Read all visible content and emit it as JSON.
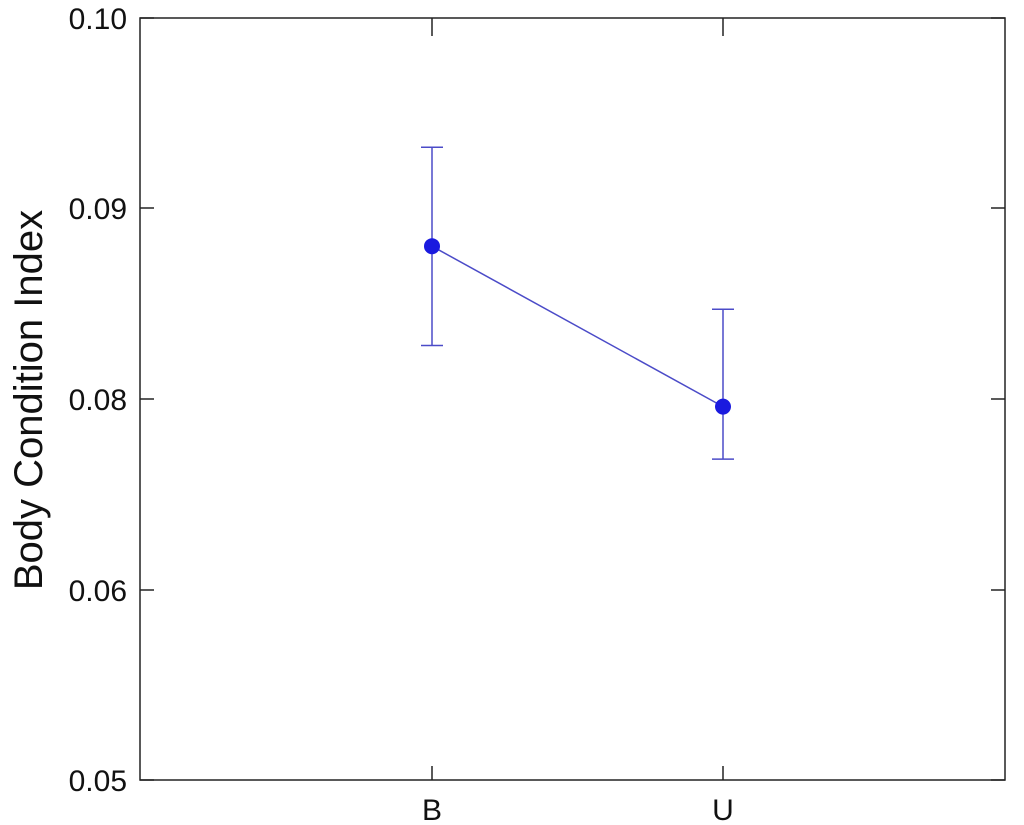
{
  "chart_data": {
    "type": "scatter",
    "ylabel": "Body Condition Index",
    "categories": [
      "B",
      "U"
    ],
    "y_tick_labels": [
      "0.05",
      "0.06",
      "0.08",
      "0.09",
      "0.10"
    ],
    "ylim": [
      0.05,
      0.1
    ],
    "grid": false,
    "connected": true,
    "series": [
      {
        "values": [
          0.088,
          0.0792
        ],
        "error_upper": [
          0.0932,
          0.0847
        ],
        "error_lower": [
          0.0828,
          0.0737
        ],
        "color": "#1a1adf",
        "line_color": "#4b4bc8"
      }
    ]
  }
}
